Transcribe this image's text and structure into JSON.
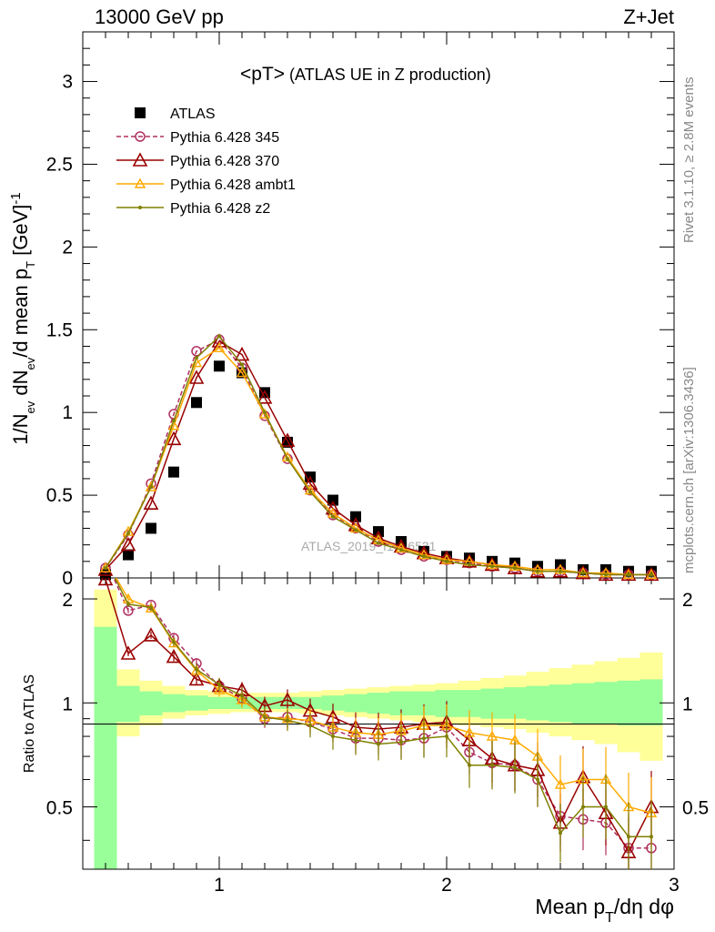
{
  "header": {
    "left_label": "13000 GeV pp",
    "right_label": "Z+Jet"
  },
  "side_text": {
    "rivet": "Rivet 3.1.10, ≥ 2.8M events",
    "source": "mcplots.cern.ch [arXiv:1306.3436]"
  },
  "watermark": "ATLAS_2019_I1736531",
  "chart_data": [
    {
      "type": "scatter",
      "panel": "main",
      "title": "<pT> (ATLAS UE in Z production)",
      "ylabel": "1/N_ev dN_ev/d mean p_T [GeV]^-1",
      "xlim": [
        0.4,
        3.0
      ],
      "ylim": [
        0,
        3.3
      ],
      "yticks": [
        "0",
        "0.5",
        "1",
        "1.5",
        "2",
        "2.5",
        "3"
      ],
      "x": [
        0.5,
        0.6,
        0.7,
        0.8,
        0.9,
        1.0,
        1.1,
        1.2,
        1.3,
        1.4,
        1.5,
        1.6,
        1.7,
        1.8,
        1.9,
        2.0,
        2.1,
        2.2,
        2.3,
        2.4,
        2.5,
        2.6,
        2.7,
        2.8,
        2.9
      ],
      "series": [
        {
          "name": "ATLAS",
          "color": "#000000",
          "marker": "square",
          "values": [
            0.02,
            0.14,
            0.3,
            0.64,
            1.06,
            1.28,
            1.24,
            1.12,
            0.82,
            0.61,
            0.47,
            0.37,
            0.28,
            0.22,
            0.16,
            0.13,
            0.12,
            0.1,
            0.09,
            0.07,
            0.08,
            0.05,
            0.05,
            0.04,
            0.04
          ]
        },
        {
          "name": "Pythia 6.428 345",
          "color": "#b03060",
          "marker": "circle",
          "dashed": true,
          "values": [
            0.06,
            0.26,
            0.57,
            0.99,
            1.37,
            1.44,
            1.27,
            0.98,
            0.72,
            0.53,
            0.38,
            0.3,
            0.22,
            0.17,
            0.13,
            0.11,
            0.09,
            0.07,
            0.06,
            0.04,
            0.04,
            0.03,
            0.02,
            0.02,
            0.02
          ]
        },
        {
          "name": "Pythia 6.428 370",
          "color": "#990000",
          "marker": "triangle",
          "values": [
            0.05,
            0.2,
            0.45,
            0.84,
            1.21,
            1.43,
            1.35,
            1.09,
            0.83,
            0.57,
            0.42,
            0.32,
            0.24,
            0.19,
            0.15,
            0.12,
            0.1,
            0.08,
            0.06,
            0.04,
            0.04,
            0.03,
            0.02,
            0.02,
            0.02
          ]
        },
        {
          "name": "Pythia 6.428 ambt1",
          "color": "#ffaa00",
          "marker": "triangle-small",
          "values": [
            0.06,
            0.28,
            0.55,
            0.92,
            1.3,
            1.39,
            1.24,
            0.99,
            0.73,
            0.53,
            0.39,
            0.3,
            0.23,
            0.18,
            0.14,
            0.11,
            0.1,
            0.08,
            0.07,
            0.05,
            0.05,
            0.03,
            0.03,
            0.02,
            0.02
          ]
        },
        {
          "name": "Pythia 6.428 z2",
          "color": "#808000",
          "marker": "dot",
          "values": [
            0.06,
            0.27,
            0.55,
            0.95,
            1.33,
            1.46,
            1.29,
            1.0,
            0.72,
            0.52,
            0.37,
            0.29,
            0.21,
            0.17,
            0.13,
            0.1,
            0.08,
            0.07,
            0.06,
            0.04,
            0.04,
            0.03,
            0.02,
            0.02,
            0.02
          ]
        }
      ]
    },
    {
      "type": "line",
      "panel": "ratio",
      "xlabel": "Mean p_T/dη dφ",
      "ylabel": "Ratio to ATLAS",
      "xlim": [
        0.4,
        3.0
      ],
      "ylim": [
        0.33,
        2.3
      ],
      "xticks": [
        "1",
        "2",
        "3"
      ],
      "yticks": [
        "0.5",
        "1",
        "2"
      ],
      "x": [
        0.5,
        0.6,
        0.7,
        0.8,
        0.9,
        1.0,
        1.1,
        1.2,
        1.3,
        1.4,
        1.5,
        1.6,
        1.7,
        1.8,
        1.9,
        2.0,
        2.1,
        2.2,
        2.3,
        2.4,
        2.5,
        2.6,
        2.7,
        2.8,
        2.9
      ],
      "bands": {
        "stat_lo": [
          0.33,
          0.88,
          0.92,
          0.94,
          0.95,
          0.96,
          0.96,
          0.96,
          0.96,
          0.96,
          0.95,
          0.94,
          0.93,
          0.92,
          0.92,
          0.91,
          0.91,
          0.9,
          0.9,
          0.89,
          0.88,
          0.87,
          0.87,
          0.86,
          0.86
        ],
        "stat_hi": [
          1.66,
          1.12,
          1.08,
          1.06,
          1.05,
          1.04,
          1.04,
          1.04,
          1.04,
          1.04,
          1.05,
          1.06,
          1.07,
          1.08,
          1.08,
          1.09,
          1.09,
          1.1,
          1.11,
          1.12,
          1.13,
          1.14,
          1.15,
          1.16,
          1.17
        ],
        "total_lo": [
          0.33,
          0.8,
          0.86,
          0.9,
          0.92,
          0.93,
          0.94,
          0.94,
          0.94,
          0.93,
          0.92,
          0.91,
          0.9,
          0.89,
          0.88,
          0.87,
          0.86,
          0.85,
          0.84,
          0.82,
          0.8,
          0.78,
          0.76,
          0.72,
          0.68
        ],
        "total_hi": [
          2.13,
          1.25,
          1.16,
          1.12,
          1.09,
          1.08,
          1.07,
          1.07,
          1.07,
          1.08,
          1.09,
          1.1,
          1.11,
          1.12,
          1.13,
          1.14,
          1.16,
          1.18,
          1.2,
          1.23,
          1.26,
          1.29,
          1.32,
          1.35,
          1.4
        ]
      },
      "series": [
        {
          "name": "Pythia 6.428 345",
          "color": "#b03060",
          "marker": "circle",
          "dashed": true,
          "values": [
            2.6,
            1.85,
            1.92,
            1.54,
            1.3,
            1.12,
            1.03,
            0.9,
            0.91,
            0.88,
            0.84,
            0.79,
            0.79,
            0.78,
            0.79,
            0.85,
            0.72,
            0.67,
            0.66,
            0.6,
            0.47,
            0.46,
            0.45,
            0.38,
            0.38
          ]
        },
        {
          "name": "Pythia 6.428 370",
          "color": "#990000",
          "marker": "triangle",
          "values": [
            2.28,
            1.39,
            1.57,
            1.36,
            1.17,
            1.12,
            1.09,
            0.98,
            1.02,
            0.95,
            0.91,
            0.85,
            0.84,
            0.85,
            0.87,
            0.88,
            0.78,
            0.69,
            0.66,
            0.64,
            0.45,
            0.61,
            0.48,
            0.37,
            0.5
          ]
        },
        {
          "name": "Pythia 6.428 ambt1",
          "color": "#ffaa00",
          "marker": "triangle-small",
          "values": [
            2.6,
            2.0,
            1.88,
            1.49,
            1.24,
            1.09,
            1.02,
            0.91,
            0.9,
            0.89,
            0.85,
            0.82,
            0.81,
            0.83,
            0.86,
            0.86,
            0.82,
            0.8,
            0.78,
            0.7,
            0.58,
            0.6,
            0.6,
            0.5,
            0.48
          ]
        },
        {
          "name": "Pythia 6.428 z2",
          "color": "#808000",
          "marker": "dot",
          "values": [
            2.6,
            1.93,
            1.89,
            1.5,
            1.25,
            1.13,
            1.05,
            0.91,
            0.89,
            0.86,
            0.8,
            0.78,
            0.76,
            0.77,
            0.79,
            0.8,
            0.66,
            0.66,
            0.65,
            0.6,
            0.42,
            0.5,
            0.5,
            0.41,
            0.41
          ]
        }
      ]
    }
  ]
}
